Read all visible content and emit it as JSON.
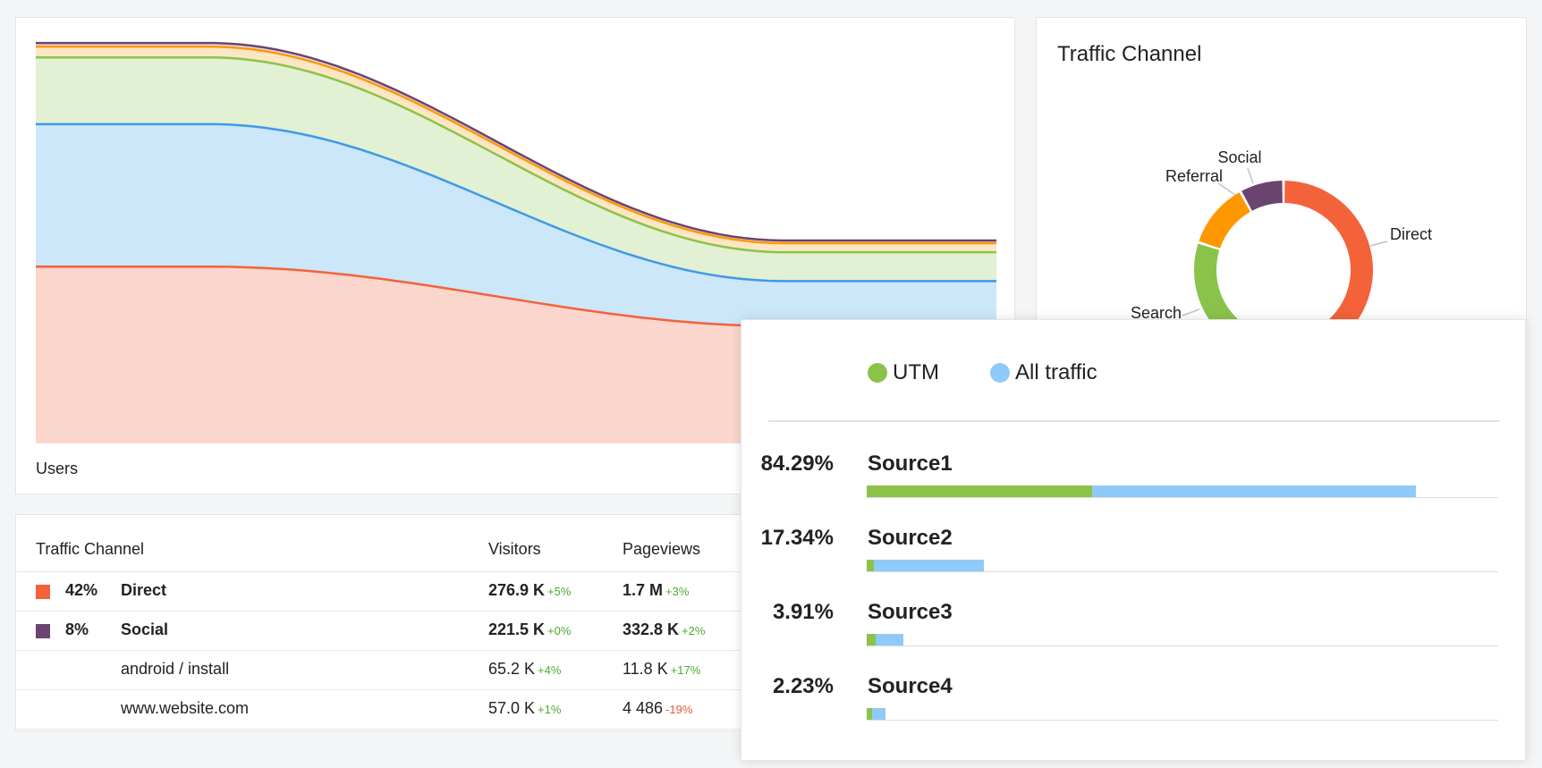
{
  "colors": {
    "direct": "#f4623a",
    "search": "#8bc34a",
    "referral": "#ff9800",
    "social": "#6b4470",
    "all_traffic": "#90caf9",
    "utm": "#8bc34a",
    "positive_delta": "#4caa2f",
    "negative_delta": "#e85a3c"
  },
  "chart_data": [
    {
      "type": "area",
      "stacked": true,
      "xlabel": "Users",
      "series": [
        {
          "name": "Direct",
          "color": "#f4623a",
          "fill": "#fbd6cd",
          "start": 196,
          "end": 130
        },
        {
          "name": "All traffic",
          "color": "#3d9ae8",
          "fill": "#cce6fa",
          "start": 354,
          "end": 180
        },
        {
          "name": "Search",
          "color": "#8bc34a",
          "fill": "#e2f0d3",
          "start": 428,
          "end": 212
        },
        {
          "name": "Referral",
          "color": "#ff9800",
          "fill": "#fde6c4",
          "start": 440,
          "end": 222
        },
        {
          "name": "Social",
          "color": "#6b4470",
          "fill": "#e6dcea",
          "start": 444,
          "end": 225
        }
      ],
      "ylim": [
        0,
        450
      ]
    },
    {
      "type": "pie",
      "title": "Traffic Channel",
      "labels": [
        "Direct",
        "Search",
        "Referral",
        "Social"
      ],
      "values": [
        42,
        38,
        12,
        8
      ],
      "colors": [
        "#f4623a",
        "#8bc34a",
        "#ff9800",
        "#6b4470"
      ]
    }
  ],
  "table": {
    "headers": {
      "channel": "Traffic Channel",
      "visitors": "Visitors",
      "pageviews": "Pageviews"
    },
    "rows": [
      {
        "swatch": "#f4623a",
        "pct": "42%",
        "channel": "Direct",
        "bold": true,
        "visitors": "276.9 K",
        "visitors_delta": "+5%",
        "visitors_sign": "pos",
        "pageviews": "1.7 M",
        "pageviews_delta": "+3%",
        "pageviews_sign": "pos"
      },
      {
        "swatch": "#6b4470",
        "pct": "8%",
        "channel": "Social",
        "bold": true,
        "visitors": "221.5 K",
        "visitors_delta": "+0%",
        "visitors_sign": "pos",
        "pageviews": "332.8 K",
        "pageviews_delta": "+2%",
        "pageviews_sign": "pos"
      },
      {
        "swatch": "",
        "pct": "",
        "channel": "android / install",
        "bold": false,
        "visitors": "65.2 K",
        "visitors_delta": "+4%",
        "visitors_sign": "pos",
        "pageviews": "11.8 K",
        "pageviews_delta": "+17%",
        "pageviews_sign": "pos"
      },
      {
        "swatch": "",
        "pct": "",
        "channel": "www.website.com",
        "bold": false,
        "visitors": "57.0 K",
        "visitors_delta": "+1%",
        "visitors_sign": "pos",
        "pageviews": "4 486",
        "pageviews_delta": "-19%",
        "pageviews_sign": "neg"
      }
    ]
  },
  "sources": {
    "legend": [
      {
        "label": "UTM",
        "color": "#8bc34a"
      },
      {
        "label": "All traffic",
        "color": "#90caf9"
      }
    ],
    "rows": [
      {
        "pct": "84.29%",
        "name": "Source1",
        "utm": 0.357,
        "all": 0.869
      },
      {
        "pct": "17.34%",
        "name": "Source2",
        "utm": 0.011,
        "all": 0.186
      },
      {
        "pct": "3.91%",
        "name": "Source3",
        "utm": 0.014,
        "all": 0.058
      },
      {
        "pct": "2.23%",
        "name": "Source4",
        "utm": 0.008,
        "all": 0.03
      }
    ]
  }
}
